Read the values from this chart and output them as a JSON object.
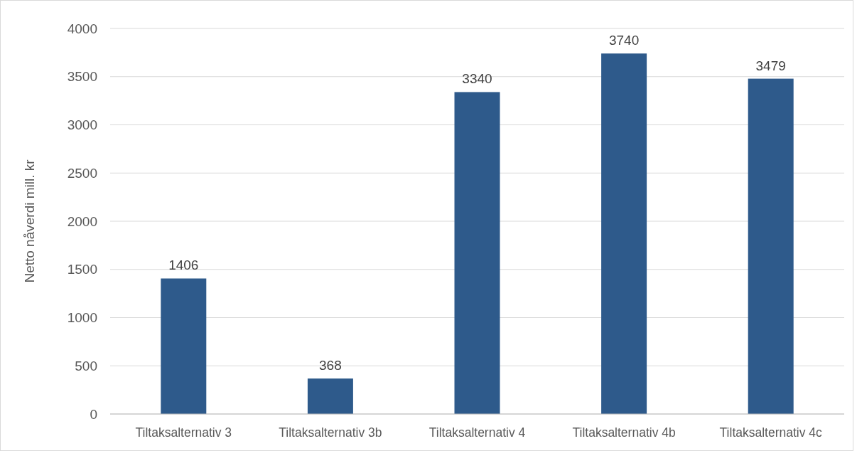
{
  "chart_data": {
    "type": "bar",
    "ylabel": "Netto nåverdi mill. kr",
    "categories": [
      "Tiltaksalternativ 3",
      "Tiltaksalternativ 3b",
      "Tiltaksalternativ 4",
      "Tiltaksalternativ 4b",
      "Tiltaksalternativ 4c"
    ],
    "values": [
      1406,
      368,
      3340,
      3740,
      3479
    ],
    "color": "#2e5a8b",
    "ylim": [
      0,
      4000
    ],
    "yticks": [
      0,
      500,
      1000,
      1500,
      2000,
      2500,
      3000,
      3500,
      4000
    ],
    "grid": "y",
    "data_labels": true
  }
}
